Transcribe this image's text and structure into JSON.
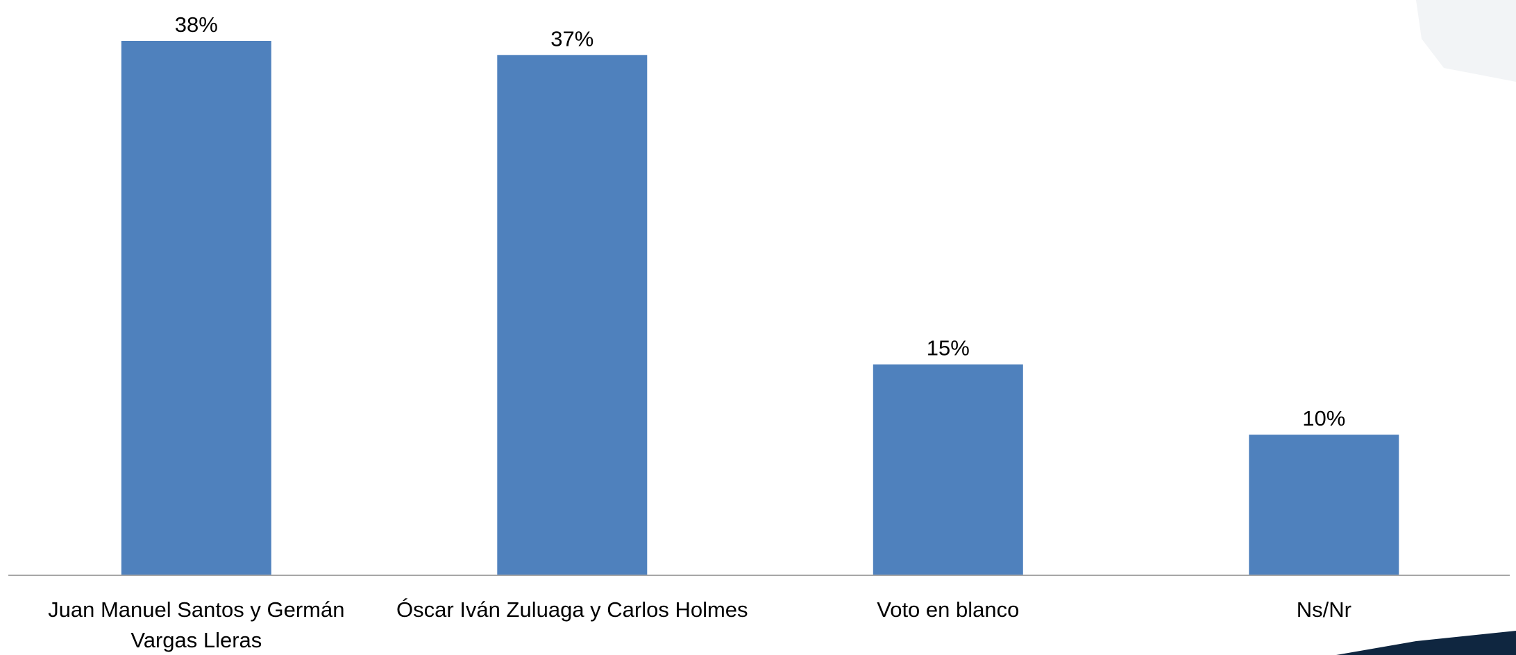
{
  "chart_data": {
    "type": "bar",
    "categories": [
      "Juan Manuel Santos y Germán Vargas Lleras",
      "Óscar Iván Zuluaga y Carlos Holmes",
      "Voto en blanco",
      "Ns/Nr"
    ],
    "values": [
      38,
      37,
      15,
      10
    ],
    "data_labels": [
      "38%",
      "37%",
      "15%",
      "10%"
    ],
    "category_lines": [
      [
        "Juan Manuel Santos y Germán",
        "Vargas Lleras"
      ],
      [
        "Óscar Iván Zuluaga y Carlos Holmes"
      ],
      [
        "Voto en blanco"
      ],
      [
        "Ns/Nr"
      ]
    ],
    "unit": "%",
    "ylim": [
      0,
      40
    ],
    "grid": false,
    "legend": "none",
    "bar_color": "#4F81BD",
    "axis_color": "#A6A6A6"
  }
}
